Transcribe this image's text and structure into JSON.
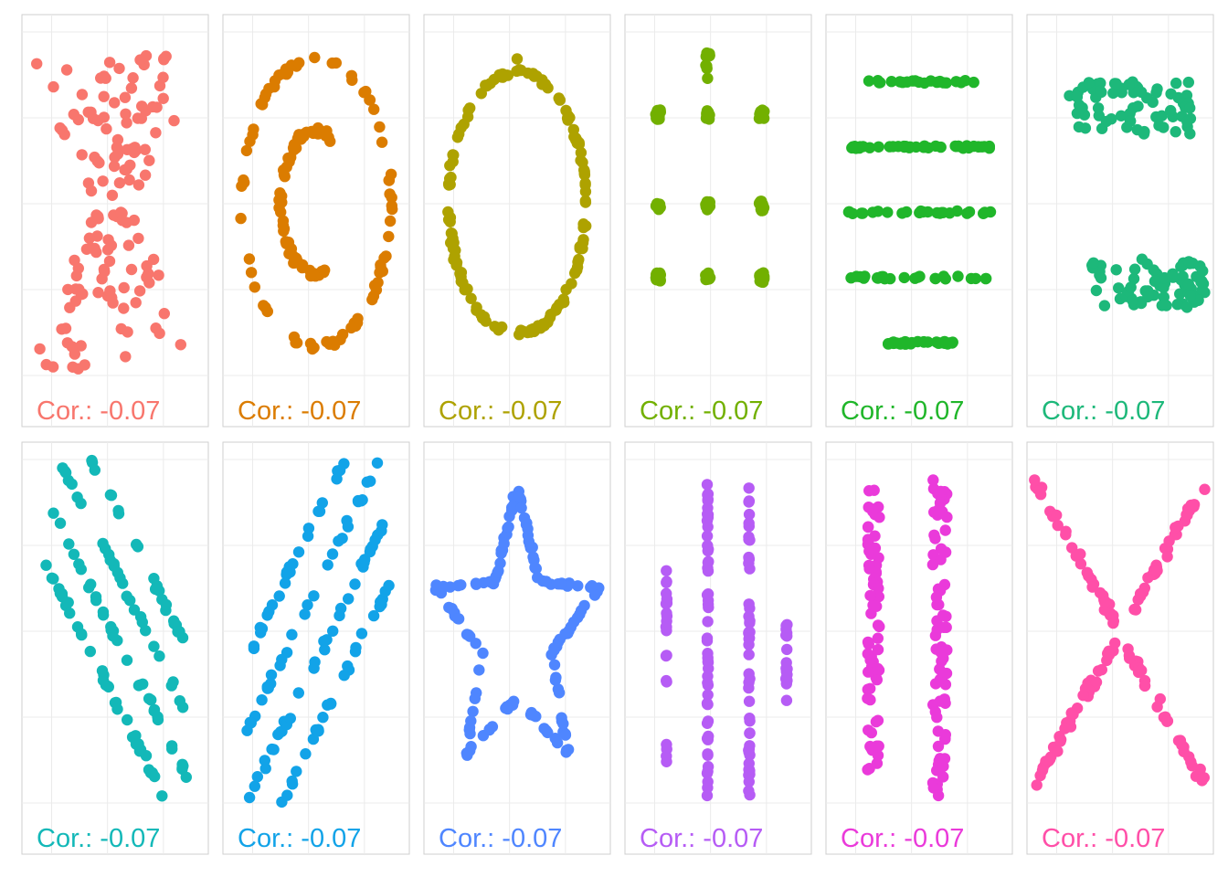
{
  "chart_data": {
    "type": "scatter",
    "layout": {
      "rows": 2,
      "cols": 6
    },
    "xlim": [
      10,
      100
    ],
    "ylim": [
      -5,
      110
    ],
    "panels": [
      {
        "name": "away",
        "color": "#F8766D",
        "label": "Cor.: -0.07",
        "shape": "away"
      },
      {
        "name": "bullseye",
        "color": "#DB8E00",
        "label": "Cor.: -0.07",
        "shape": "bullseye"
      },
      {
        "name": "circle",
        "color": "#AEA200",
        "label": "Cor.: -0.07",
        "shape": "circle"
      },
      {
        "name": "dots",
        "color": "#64B200",
        "label": "Cor.: -0.07",
        "shape": "dots"
      },
      {
        "name": "h_lines",
        "color": "#00BD5C",
        "label": "Cor.: -0.07",
        "shape": "h_lines"
      },
      {
        "name": "high_lines",
        "color": "#00C1A7",
        "label": "Cor.: -0.07",
        "shape": "high_lines"
      },
      {
        "name": "slant_down",
        "color": "#00BADE",
        "label": "Cor.: -0.07",
        "shape": "slant_down"
      },
      {
        "name": "slant_up",
        "color": "#00A6FF",
        "label": "Cor.: -0.07",
        "shape": "slant_up"
      },
      {
        "name": "star",
        "color": "#B385FF",
        "label": "Cor.: -0.07",
        "shape": "star"
      },
      {
        "name": "v_lines",
        "color": "#EF67EB",
        "label": "Cor.: -0.07",
        "shape": "v_lines"
      },
      {
        "name": "wide_lines",
        "color": "#FF63B6",
        "label": "Cor.: -0.07",
        "shape": "wide_lines"
      },
      {
        "name": "x_shape",
        "color": "#FF61C3",
        "label": "Cor.: -0.07",
        "shape": "x_shape"
      }
    ]
  }
}
